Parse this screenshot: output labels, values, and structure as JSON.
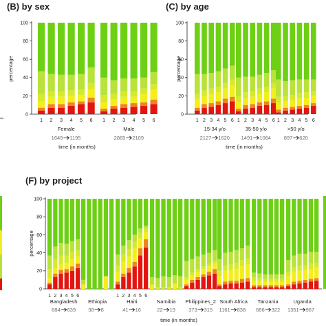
{
  "colors": {
    "c0": "#6dd014",
    "c1": "#b9e23a",
    "c2": "#f5ee1a",
    "c3": "#ee8420",
    "c4": "#e3150f"
  },
  "chart_data": [
    {
      "id": "sex",
      "type": "bar",
      "title": "(B) by sex",
      "ylabel": "percentage",
      "xlabel": "time (in months)",
      "ylim": [
        0,
        100
      ],
      "yticks": [
        0,
        20,
        40,
        60,
        80,
        100
      ],
      "stacked": true,
      "groups": [
        {
          "label": "Female",
          "n_start": "1649",
          "n_end": "1195",
          "months": [
            "1",
            "2",
            "3",
            "4",
            "5",
            "6"
          ],
          "stacks": [
            [
              4,
              3,
              7,
              8,
              25,
              53
            ],
            [
              7,
              4,
              8,
              6,
              19,
              56
            ],
            [
              7,
              4,
              8,
              6,
              18,
              57
            ],
            [
              9,
              4,
              7,
              6,
              17,
              57
            ],
            [
              11,
              3,
              7,
              6,
              17,
              56
            ],
            [
              13,
              5,
              9,
              7,
              17,
              49
            ]
          ]
        },
        {
          "label": "Male",
          "n_start": "2865",
          "n_end": "2109",
          "months": [
            "1",
            "2",
            "3",
            "4",
            "5",
            "6"
          ],
          "stacks": [
            [
              3,
              3,
              7,
              8,
              19,
              60
            ],
            [
              6,
              3,
              7,
              6,
              15,
              63
            ],
            [
              7,
              4,
              8,
              6,
              14,
              61
            ],
            [
              8,
              4,
              7,
              6,
              14,
              61
            ],
            [
              9,
              4,
              9,
              6,
              12,
              60
            ],
            [
              11,
              5,
              11,
              6,
              13,
              54
            ]
          ]
        }
      ]
    },
    {
      "id": "age",
      "type": "bar",
      "title": "(C) by age",
      "ylabel": "percentage",
      "xlabel": "time (in months)",
      "ylim": [
        0,
        100
      ],
      "yticks": [
        0,
        20,
        40,
        60,
        80,
        100
      ],
      "stacked": true,
      "groups": [
        {
          "label": "15-34 y/o",
          "n_start": "2127",
          "n_end": "1620",
          "months": [
            "1",
            "2",
            "3",
            "4",
            "5",
            "6"
          ],
          "stacks": [
            [
              4,
              3,
              10,
              5,
              22,
              56
            ],
            [
              7,
              4,
              9,
              6,
              18,
              56
            ],
            [
              8,
              4,
              10,
              6,
              17,
              55
            ],
            [
              10,
              4,
              10,
              6,
              17,
              53
            ],
            [
              12,
              5,
              11,
              6,
              16,
              50
            ],
            [
              14,
              5,
              12,
              7,
              15,
              47
            ]
          ]
        },
        {
          "label": "35-50 y/o",
          "n_start": "1491",
          "n_end": "1064",
          "months": [
            "1",
            "2",
            "3",
            "4",
            "5",
            "6"
          ],
          "stacks": [
            [
              3,
              3,
              7,
              7,
              20,
              60
            ],
            [
              6,
              4,
              7,
              7,
              17,
              59
            ],
            [
              7,
              4,
              8,
              6,
              16,
              59
            ],
            [
              9,
              4,
              9,
              6,
              15,
              57
            ],
            [
              10,
              4,
              10,
              6,
              15,
              55
            ],
            [
              12,
              5,
              11,
              6,
              14,
              52
            ]
          ]
        },
        {
          "label": ">50 y/o",
          "n_start": "897",
          "n_end": "620",
          "months": [
            "1",
            "2",
            "3",
            "4",
            "5",
            "6"
          ],
          "stacks": [
            [
              2,
              3,
              7,
              7,
              19,
              62
            ],
            [
              4,
              3,
              7,
              6,
              16,
              64
            ],
            [
              5,
              3,
              7,
              6,
              16,
              63
            ],
            [
              6,
              3,
              8,
              6,
              15,
              62
            ],
            [
              7,
              3,
              8,
              6,
              14,
              62
            ],
            [
              9,
              3,
              8,
              5,
              13,
              62
            ]
          ]
        }
      ]
    },
    {
      "id": "project",
      "type": "bar",
      "title": "(F) by project",
      "ylabel": "percentage",
      "xlabel": "time (in months)",
      "ylim": [
        0,
        100
      ],
      "yticks": [
        0,
        20,
        40,
        60,
        80,
        100
      ],
      "stacked": true,
      "groups": [
        {
          "label": "Bangladesh",
          "n_start": "684",
          "n_end": "639",
          "months": [
            "1",
            "2",
            "3",
            "4",
            "5",
            "6"
          ],
          "stacks": [
            [
              5,
              2,
              5,
              10,
              15,
              63
            ],
            [
              13,
              4,
              6,
              10,
              14,
              53
            ],
            [
              17,
              4,
              6,
              10,
              14,
              49
            ],
            [
              18,
              4,
              7,
              8,
              13,
              50
            ],
            [
              20,
              5,
              8,
              8,
              12,
              47
            ],
            [
              23,
              5,
              8,
              7,
              12,
              45
            ]
          ]
        },
        {
          "label": "Ethiopia",
          "n_start": "38",
          "n_end": "8",
          "months": [
            "",
            "",
            "",
            "",
            "",
            ""
          ],
          "stacks": [
            [
              0,
              0,
              5,
              0,
              5,
              90
            ],
            [
              0,
              0,
              0,
              0,
              0,
              100
            ],
            [
              0,
              0,
              0,
              0,
              0,
              100
            ],
            [
              0,
              0,
              0,
              0,
              0,
              100
            ],
            [
              0,
              0,
              14,
              0,
              0,
              86
            ],
            [
              0,
              0,
              0,
              0,
              0,
              100
            ]
          ]
        },
        {
          "label": "Haiti",
          "n_start": "41",
          "n_end": "16",
          "months": [
            "1",
            "2",
            "3",
            "4",
            "5",
            "6"
          ],
          "stacks": [
            [
              5,
              3,
              11,
              7,
              12,
              62
            ],
            [
              13,
              4,
              13,
              8,
              10,
              52
            ],
            [
              18,
              5,
              13,
              8,
              10,
              46
            ],
            [
              25,
              5,
              15,
              7,
              8,
              40
            ],
            [
              37,
              8,
              11,
              6,
              5,
              33
            ],
            [
              46,
              9,
              8,
              4,
              3,
              30
            ]
          ]
        },
        {
          "label": "Namibia",
          "n_start": "22",
          "n_end": "19",
          "months": [
            "",
            "",
            "",
            "",
            "",
            ""
          ],
          "stacks": [
            [
              0,
              0,
              4,
              1,
              8,
              87
            ],
            [
              0,
              0,
              0,
              2,
              10,
              88
            ],
            [
              0,
              0,
              0,
              2,
              12,
              86
            ],
            [
              0,
              0,
              0,
              2,
              11,
              87
            ],
            [
              0,
              0,
              5,
              1,
              9,
              85
            ],
            [
              0,
              0,
              0,
              2,
              12,
              86
            ]
          ]
        },
        {
          "label": "Philippines_2",
          "n_start": "373",
          "n_end": "315",
          "months": [
            "",
            "",
            "",
            "",
            "",
            ""
          ],
          "stacks": [
            [
              3,
              2,
              5,
              3,
              18,
              69
            ],
            [
              7,
              3,
              5,
              3,
              15,
              67
            ],
            [
              10,
              3,
              6,
              3,
              14,
              64
            ],
            [
              13,
              3,
              6,
              3,
              13,
              62
            ],
            [
              15,
              4,
              6,
              3,
              12,
              60
            ],
            [
              17,
              5,
              6,
              3,
              12,
              57
            ]
          ]
        },
        {
          "label": "South Africa",
          "n_start": "1161",
          "n_end": "838",
          "months": [
            "",
            "",
            "",
            "",
            "",
            ""
          ],
          "stacks": [
            [
              3,
              2,
              9,
              6,
              13,
              67
            ],
            [
              5,
              3,
              12,
              6,
              14,
              60
            ],
            [
              6,
              3,
              12,
              6,
              14,
              59
            ],
            [
              6,
              3,
              13,
              7,
              14,
              57
            ],
            [
              7,
              4,
              14,
              7,
              13,
              55
            ],
            [
              8,
              4,
              15,
              7,
              14,
              52
            ]
          ]
        },
        {
          "label": "Tanzania",
          "n_start": "686",
          "n_end": "322",
          "months": [
            "",
            "",
            "",
            "",
            "",
            ""
          ],
          "stacks": [
            [
              2,
              2,
              5,
              4,
              5,
              82
            ],
            [
              2,
              2,
              5,
              3,
              5,
              83
            ],
            [
              2,
              2,
              4,
              3,
              5,
              84
            ],
            [
              2,
              2,
              4,
              3,
              5,
              84
            ],
            [
              2,
              2,
              4,
              3,
              5,
              84
            ],
            [
              2,
              2,
              4,
              3,
              5,
              84
            ]
          ]
        },
        {
          "label": "Uganda",
          "n_start": "1351",
          "n_end": "967",
          "months": [
            "",
            "",
            "",
            "",
            "",
            ""
          ],
          "stacks": [
            [
              3,
              2,
              9,
              5,
              13,
              68
            ],
            [
              5,
              3,
              11,
              5,
              13,
              63
            ],
            [
              6,
              3,
              11,
              6,
              13,
              61
            ],
            [
              7,
              3,
              11,
              5,
              13,
              61
            ],
            [
              8,
              3,
              11,
              6,
              13,
              59
            ],
            [
              9,
              3,
              12,
              5,
              12,
              59
            ]
          ]
        }
      ]
    }
  ]
}
